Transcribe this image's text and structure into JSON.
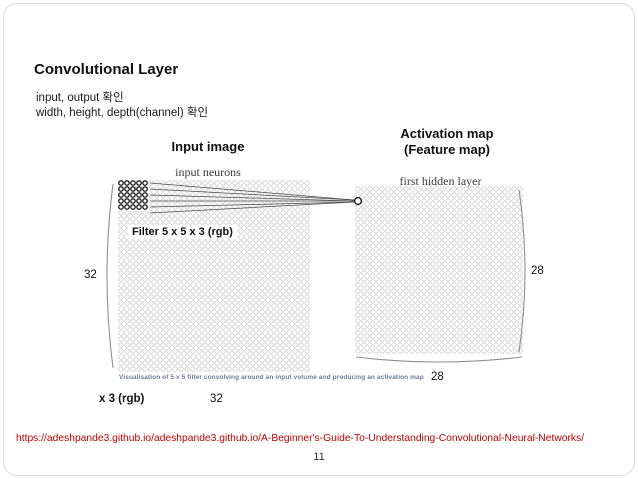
{
  "slide": {
    "title": "Convolutional Layer",
    "subtitles": [
      "input, output 확인",
      "width, height, depth(channel) 확인"
    ],
    "input_image_heading": "Input image",
    "activation_heading": [
      "Activation map",
      "(Feature map)"
    ],
    "source_url": "https://adeshpande3.github.io/adeshpande3.github.io/A-Beginner's-Guide-To-Understanding-Convolutional-Neural-Networks/",
    "page_number": "11"
  },
  "diagram": {
    "input_neurons_label": "input neurons",
    "hidden_layer_label": "first hidden layer",
    "filter_label": "Filter 5 x 5 x 3 (rgb)",
    "caption": "Visualisation of 5 x 5 filter convolving around an input volume and producing an activation map",
    "input_height_label": "32",
    "input_width_label": "32",
    "input_depth_label": "x 3 (rgb)",
    "output_height_label": "28",
    "output_width_label": "28",
    "input_grid": {
      "rows": 32,
      "cols": 32,
      "filter_rows": 5,
      "filter_cols": 5
    },
    "hidden_grid": {
      "rows": 28,
      "cols": 28
    }
  },
  "colors": {
    "link_red": "#c00000",
    "caption_blue": "#6c7b94",
    "neuron_light": "#c7c7c7",
    "neuron_dark": "#1c1c1c"
  }
}
